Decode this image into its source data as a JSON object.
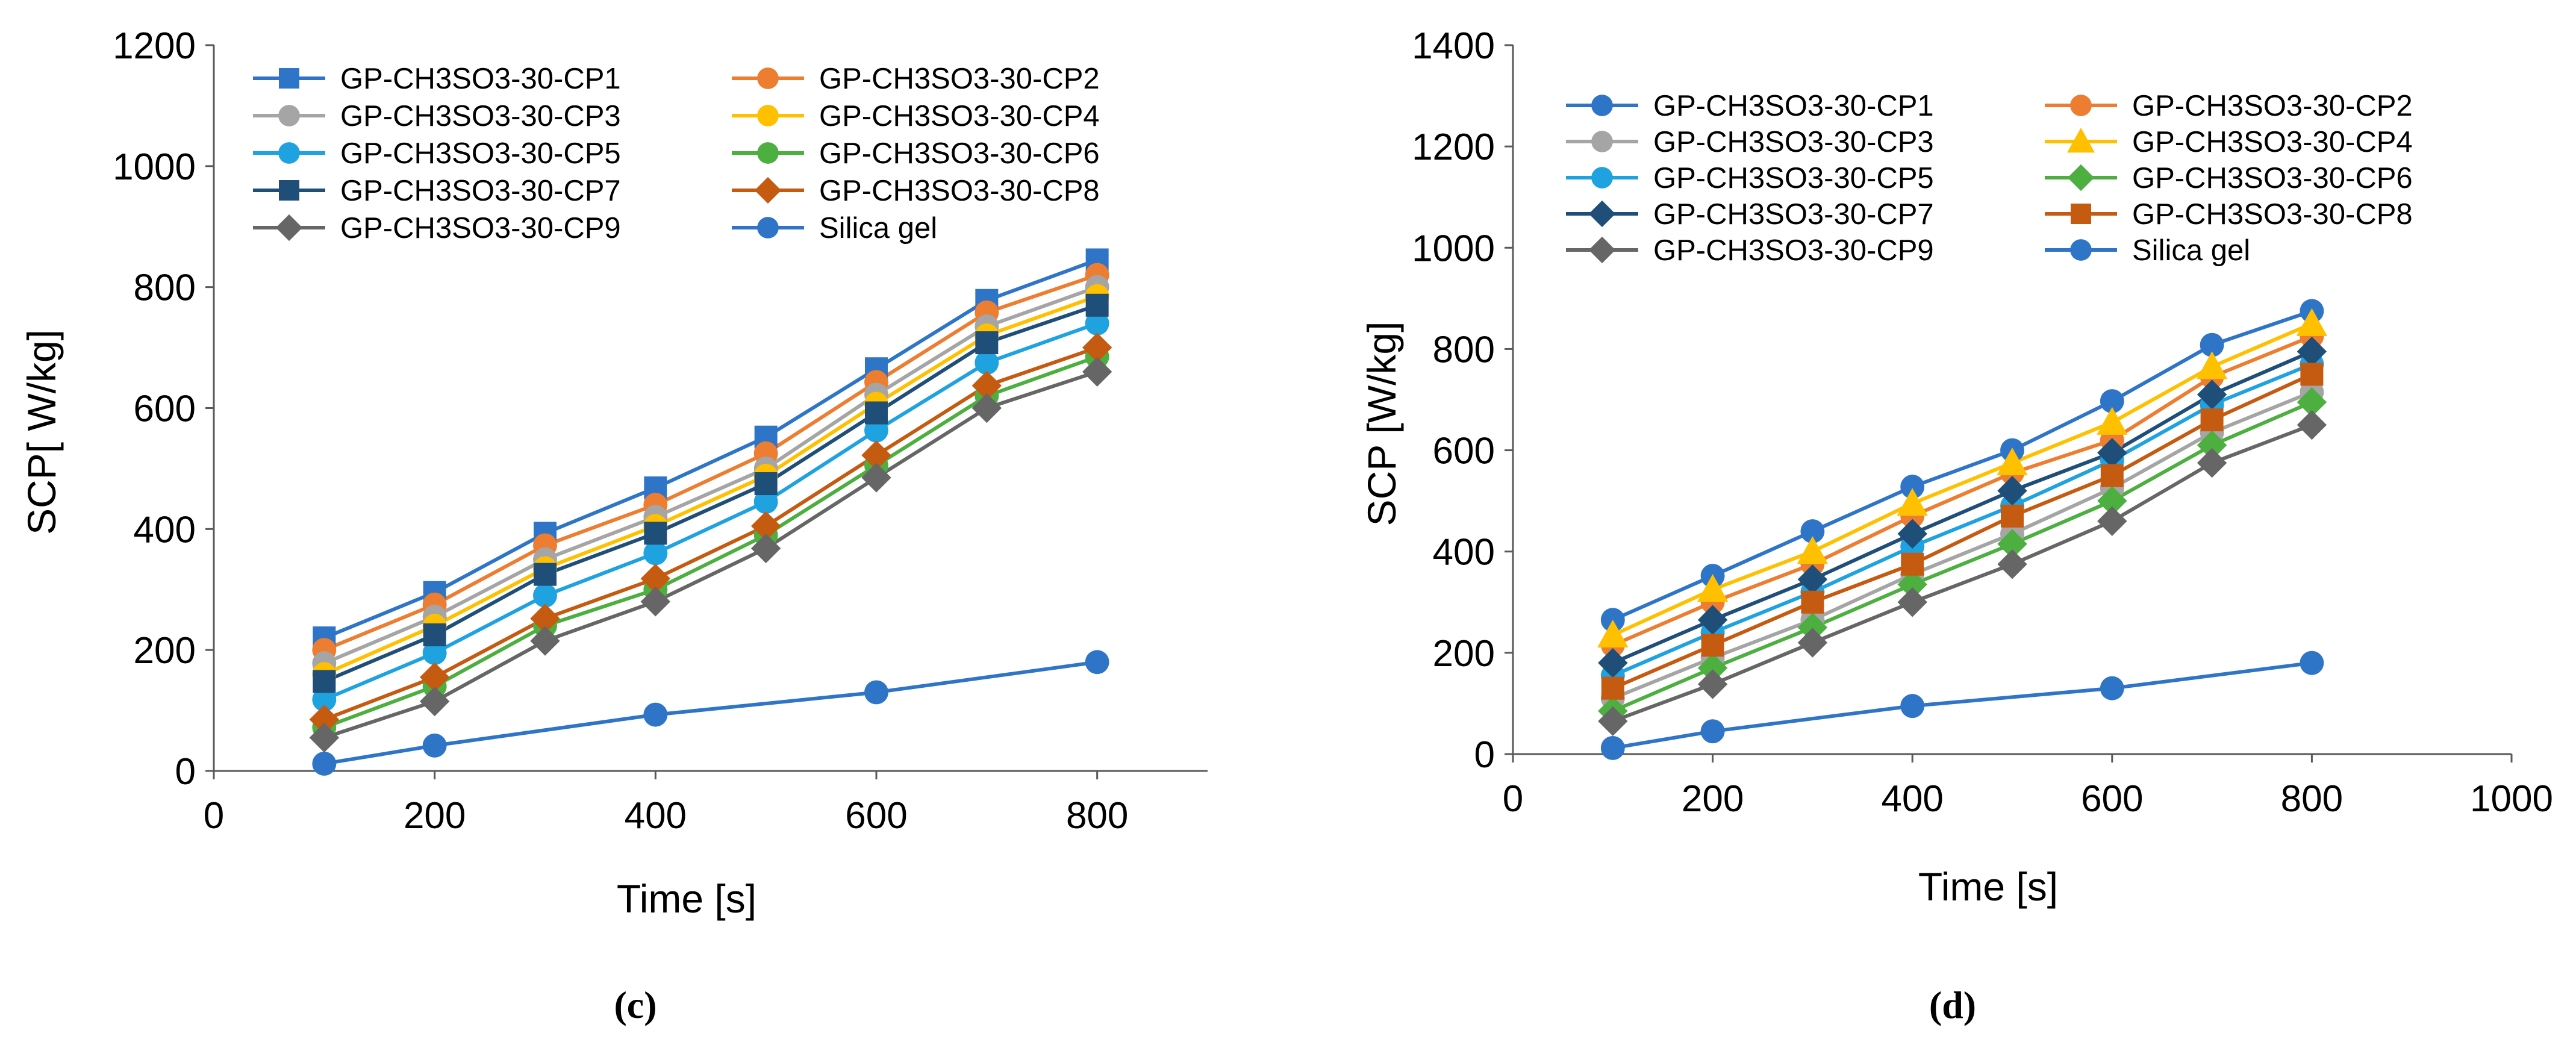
{
  "chart_data": [
    {
      "type": "line",
      "panel_label": "(c)",
      "title": "",
      "xlabel": "Time [s]",
      "ylabel": "SCP[ W/kg]",
      "xlim": [
        0,
        900
      ],
      "ylim": [
        0,
        1200
      ],
      "x_ticks": [
        0,
        200,
        400,
        600,
        800
      ],
      "y_ticks": [
        0,
        200,
        400,
        600,
        800,
        1000,
        1200
      ],
      "x_tick_labels": [
        "0",
        "200",
        "400",
        "600",
        "800"
      ],
      "y_tick_labels": [
        "0",
        "200",
        "400",
        "600",
        "800",
        "1000",
        "1200"
      ],
      "grid": false,
      "legend_position": "top-left",
      "x": [
        100,
        200,
        300,
        400,
        500,
        600,
        700,
        800
      ],
      "series": [
        {
          "name": "GP-CH3SO3-30-CP1",
          "color": "#2E75C8",
          "marker": "square",
          "values": [
            220,
            295,
            393,
            468,
            552,
            665,
            778,
            845
          ]
        },
        {
          "name": "GP-CH3SO3-30-CP2",
          "color": "#ED7D31",
          "marker": "circle",
          "values": [
            200,
            275,
            373,
            440,
            525,
            643,
            758,
            820
          ]
        },
        {
          "name": "GP-CH3SO3-30-CP3",
          "color": "#A5A5A5",
          "marker": "circle",
          "values": [
            178,
            255,
            350,
            420,
            500,
            622,
            735,
            800
          ]
        },
        {
          "name": "GP-CH3SO3-30-CP4",
          "color": "#FFC000",
          "marker": "circle",
          "values": [
            160,
            240,
            335,
            405,
            488,
            607,
            720,
            785
          ]
        },
        {
          "name": "GP-CH3SO3-30-CP5",
          "color": "#1FA2E0",
          "marker": "circle",
          "values": [
            118,
            195,
            290,
            360,
            445,
            563,
            675,
            740
          ]
        },
        {
          "name": "GP-CH3SO3-30-CP6",
          "color": "#4CAF3F",
          "marker": "circle",
          "values": [
            72,
            140,
            240,
            300,
            390,
            505,
            620,
            685
          ]
        },
        {
          "name": "GP-CH3SO3-30-CP7",
          "color": "#1F4E79",
          "marker": "square",
          "values": [
            148,
            225,
            325,
            393,
            475,
            592,
            708,
            770
          ]
        },
        {
          "name": "GP-CH3SO3-30-CP8",
          "color": "#C55A11",
          "marker": "diamond",
          "values": [
            85,
            155,
            252,
            318,
            405,
            522,
            637,
            700
          ]
        },
        {
          "name": "GP-CH3SO3-30-CP9",
          "color": "#666666",
          "marker": "diamond",
          "values": [
            55,
            115,
            215,
            280,
            368,
            485,
            600,
            660
          ]
        },
        {
          "name": "Silica gel",
          "color": "#2E75C8",
          "marker": "circle",
          "x": [
            100,
            200,
            400,
            600,
            800
          ],
          "values": [
            12,
            42,
            93,
            130,
            180
          ]
        }
      ]
    },
    {
      "type": "line",
      "panel_label": "(d)",
      "title": "",
      "xlabel": "Time [s]",
      "ylabel": "SCP [W/kg]",
      "xlim": [
        0,
        1000
      ],
      "ylim": [
        0,
        1400
      ],
      "x_ticks": [
        0,
        200,
        400,
        600,
        800,
        1000
      ],
      "y_ticks": [
        0,
        200,
        400,
        600,
        800,
        1000,
        1200,
        1400
      ],
      "x_tick_labels": [
        "0",
        "200",
        "400",
        "600",
        "800",
        "1000"
      ],
      "y_tick_labels": [
        "0",
        "200",
        "400",
        "600",
        "800",
        "1000",
        "1200",
        "1400"
      ],
      "grid": false,
      "legend_position": "top-left",
      "x": [
        100,
        200,
        300,
        400,
        500,
        600,
        700,
        800
      ],
      "series": [
        {
          "name": "GP-CH3SO3-30-CP1",
          "color": "#2E75C8",
          "marker": "circle",
          "values": [
            265,
            352,
            440,
            528,
            600,
            697,
            808,
            875
          ]
        },
        {
          "name": "GP-CH3SO3-30-CP2",
          "color": "#ED7D31",
          "marker": "circle",
          "values": [
            215,
            300,
            375,
            470,
            555,
            620,
            745,
            825
          ]
        },
        {
          "name": "GP-CH3SO3-30-CP3",
          "color": "#A5A5A5",
          "marker": "circle",
          "values": [
            110,
            190,
            265,
            355,
            435,
            525,
            635,
            715
          ]
        },
        {
          "name": "GP-CH3SO3-30-CP4",
          "color": "#FFC000",
          "marker": "triangle",
          "values": [
            235,
            325,
            400,
            495,
            575,
            655,
            765,
            850
          ]
        },
        {
          "name": "GP-CH3SO3-30-CP5",
          "color": "#1FA2E0",
          "marker": "circle",
          "values": [
            155,
            240,
            320,
            410,
            490,
            580,
            690,
            770
          ]
        },
        {
          "name": "GP-CH3SO3-30-CP6",
          "color": "#4CAF3F",
          "marker": "diamond",
          "values": [
            85,
            170,
            250,
            335,
            415,
            500,
            610,
            695
          ]
        },
        {
          "name": "GP-CH3SO3-30-CP7",
          "color": "#1F4E79",
          "marker": "diamond",
          "values": [
            180,
            265,
            345,
            435,
            520,
            595,
            710,
            795
          ]
        },
        {
          "name": "GP-CH3SO3-30-CP8",
          "color": "#C55A11",
          "marker": "square",
          "values": [
            130,
            215,
            300,
            375,
            470,
            550,
            660,
            750
          ]
        },
        {
          "name": "GP-CH3SO3-30-CP9",
          "color": "#666666",
          "marker": "diamond",
          "values": [
            65,
            138,
            220,
            300,
            375,
            460,
            575,
            650
          ]
        },
        {
          "name": "Silica gel",
          "color": "#2E75C8",
          "marker": "circle",
          "x": [
            100,
            200,
            400,
            600,
            800
          ],
          "values": [
            12,
            45,
            95,
            130,
            180
          ]
        }
      ]
    }
  ]
}
